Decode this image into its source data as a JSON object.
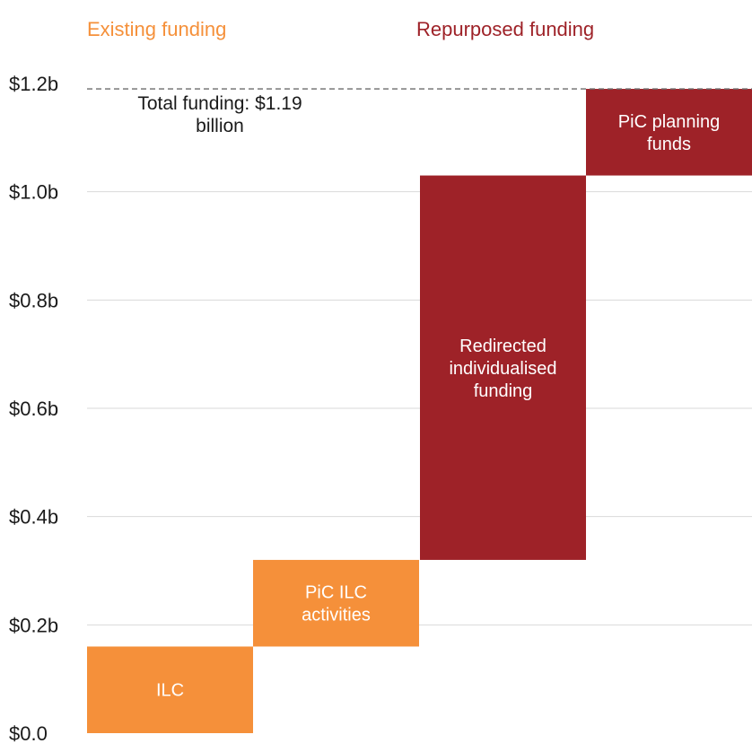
{
  "chart_data": {
    "type": "bar",
    "subtype": "waterfall",
    "title": "",
    "xlabel": "",
    "ylabel": "",
    "ylim": [
      0,
      1.2
    ],
    "y_ticks": [
      {
        "value": 0.0,
        "label": "$0.0"
      },
      {
        "value": 0.2,
        "label": "$0.2b"
      },
      {
        "value": 0.4,
        "label": "$0.4b"
      },
      {
        "value": 0.6,
        "label": "$0.6b"
      },
      {
        "value": 0.8,
        "label": "$0.8b"
      },
      {
        "value": 1.0,
        "label": "$1.0b"
      },
      {
        "value": 1.2,
        "label": "$1.2b"
      }
    ],
    "grid": true,
    "groups": [
      {
        "label": "Existing funding",
        "color": "#F5903A"
      },
      {
        "label": "Repurposed funding",
        "color": "#9E2228"
      }
    ],
    "bars": [
      {
        "label_lines": [
          "ILC"
        ],
        "start": 0.0,
        "end": 0.16,
        "group": 0
      },
      {
        "label_lines": [
          "PiC ILC",
          "activities"
        ],
        "start": 0.16,
        "end": 0.32,
        "group": 0
      },
      {
        "label_lines": [
          "Redirected",
          "individualised",
          "funding"
        ],
        "start": 0.32,
        "end": 1.03,
        "group": 1
      },
      {
        "label_lines": [
          "PiC planning",
          "funds"
        ],
        "start": 1.03,
        "end": 1.19,
        "group": 1
      }
    ],
    "total": {
      "value": 1.19,
      "label_lines": [
        "Total funding: $1.19",
        "billion"
      ]
    }
  }
}
